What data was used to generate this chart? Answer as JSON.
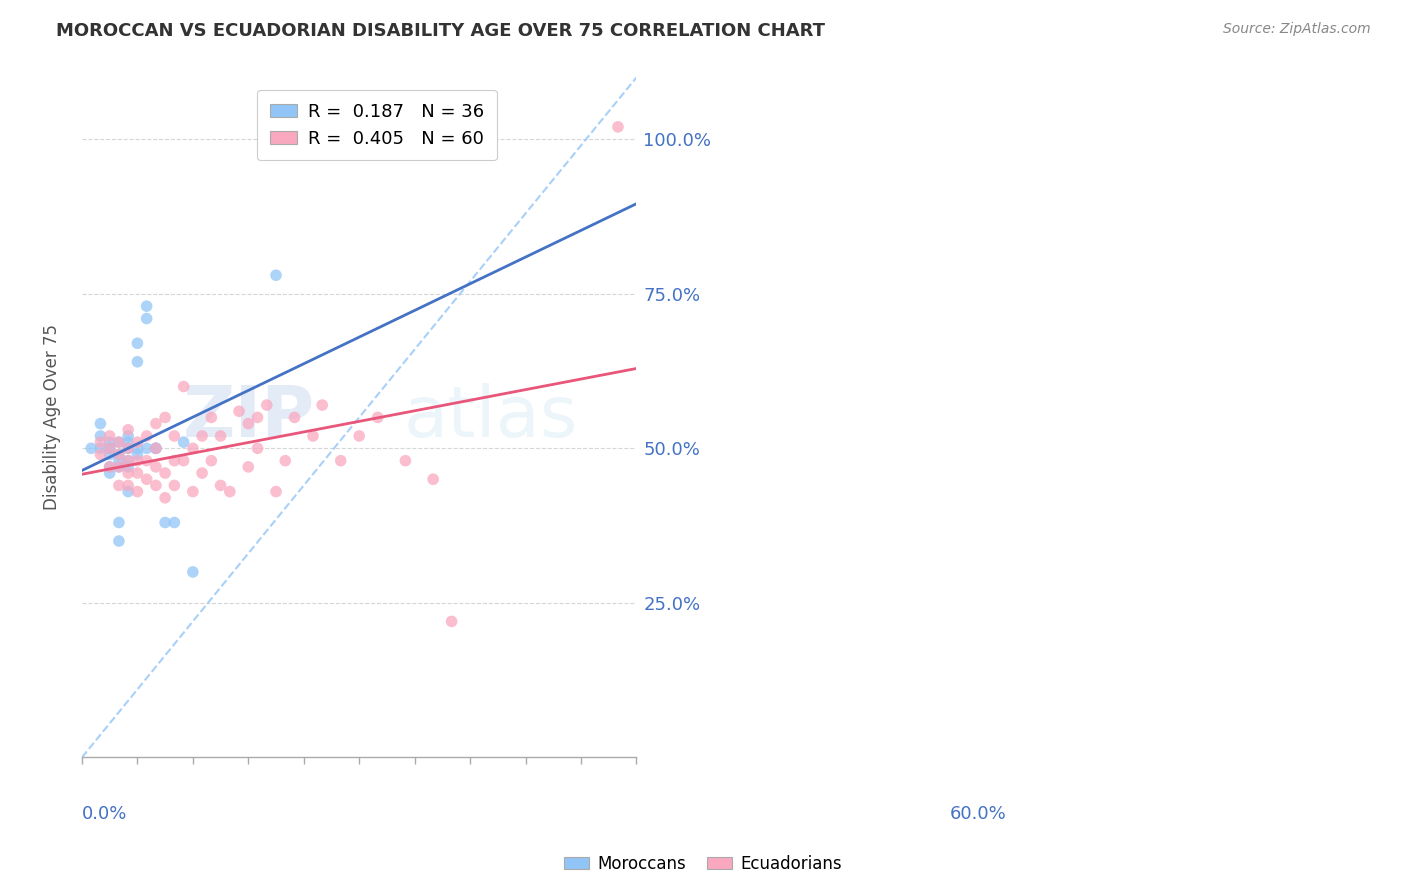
{
  "title": "MOROCCAN VS ECUADORIAN DISABILITY AGE OVER 75 CORRELATION CHART",
  "source": "Source: ZipAtlas.com",
  "ylabel": "Disability Age Over 75",
  "ytick_labels": [
    "25.0%",
    "50.0%",
    "75.0%",
    "100.0%"
  ],
  "ytick_values": [
    0.25,
    0.5,
    0.75,
    1.0
  ],
  "xlim": [
    0.0,
    0.6
  ],
  "ylim": [
    0.0,
    1.1
  ],
  "legend_moroccan": "R =  0.187   N = 36",
  "legend_ecuadorian": "R =  0.405   N = 60",
  "moroccan_color": "#92C5F7",
  "ecuadorian_color": "#F9A8C0",
  "moroccan_line_color": "#4472C4",
  "ecuadorian_line_color": "#E8567A",
  "ref_line_color": "#92C5F7",
  "watermark_zip": "ZIP",
  "watermark_atlas": "atlas",
  "background_color": "#FFFFFF",
  "moroccan_x": [
    0.01,
    0.02,
    0.02,
    0.02,
    0.03,
    0.03,
    0.03,
    0.03,
    0.03,
    0.03,
    0.04,
    0.04,
    0.04,
    0.04,
    0.04,
    0.04,
    0.05,
    0.05,
    0.05,
    0.05,
    0.05,
    0.05,
    0.06,
    0.06,
    0.06,
    0.06,
    0.07,
    0.07,
    0.07,
    0.08,
    0.08,
    0.09,
    0.1,
    0.11,
    0.12,
    0.21
  ],
  "moroccan_y": [
    0.5,
    0.5,
    0.52,
    0.54,
    0.46,
    0.47,
    0.49,
    0.5,
    0.5,
    0.51,
    0.35,
    0.38,
    0.47,
    0.48,
    0.49,
    0.51,
    0.43,
    0.47,
    0.48,
    0.5,
    0.51,
    0.52,
    0.49,
    0.5,
    0.64,
    0.67,
    0.5,
    0.71,
    0.73,
    0.5,
    0.5,
    0.38,
    0.38,
    0.51,
    0.3,
    0.78
  ],
  "ecuadorian_x": [
    0.02,
    0.02,
    0.03,
    0.03,
    0.03,
    0.04,
    0.04,
    0.04,
    0.04,
    0.05,
    0.05,
    0.05,
    0.05,
    0.05,
    0.06,
    0.06,
    0.06,
    0.06,
    0.07,
    0.07,
    0.07,
    0.08,
    0.08,
    0.08,
    0.08,
    0.09,
    0.09,
    0.09,
    0.1,
    0.1,
    0.1,
    0.11,
    0.11,
    0.12,
    0.12,
    0.13,
    0.13,
    0.14,
    0.14,
    0.15,
    0.15,
    0.16,
    0.17,
    0.18,
    0.18,
    0.19,
    0.19,
    0.2,
    0.21,
    0.22,
    0.23,
    0.25,
    0.26,
    0.28,
    0.3,
    0.32,
    0.35,
    0.38,
    0.4,
    0.58
  ],
  "ecuadorian_y": [
    0.49,
    0.51,
    0.47,
    0.5,
    0.52,
    0.44,
    0.47,
    0.49,
    0.51,
    0.44,
    0.46,
    0.48,
    0.5,
    0.53,
    0.43,
    0.46,
    0.48,
    0.51,
    0.45,
    0.48,
    0.52,
    0.44,
    0.47,
    0.5,
    0.54,
    0.42,
    0.46,
    0.55,
    0.44,
    0.48,
    0.52,
    0.48,
    0.6,
    0.43,
    0.5,
    0.46,
    0.52,
    0.48,
    0.55,
    0.44,
    0.52,
    0.43,
    0.56,
    0.47,
    0.54,
    0.5,
    0.55,
    0.57,
    0.43,
    0.48,
    0.55,
    0.52,
    0.57,
    0.48,
    0.52,
    0.55,
    0.48,
    0.45,
    0.22,
    1.02
  ],
  "grid_color": "#CCCCCC",
  "title_color": "#333333",
  "tick_label_color": "#4472C4"
}
